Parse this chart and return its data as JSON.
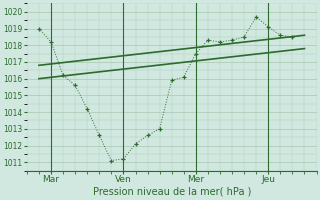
{
  "background_color": "#d0e8e0",
  "grid_color": "#b0ccb8",
  "line_color": "#2d6a2d",
  "xlabel": "Pression niveau de la mer( hPa )",
  "ylim": [
    1010.5,
    1020.5
  ],
  "yticks": [
    1011,
    1012,
    1013,
    1014,
    1015,
    1016,
    1017,
    1018,
    1019,
    1020
  ],
  "day_labels": [
    "Mar",
    "Ven",
    "Mer",
    "Jeu"
  ],
  "day_positions": [
    1,
    4,
    7,
    10
  ],
  "xlim": [
    0,
    12
  ],
  "zigzag_x": [
    0.5,
    1.0,
    1.5,
    2.0,
    2.5,
    3.0,
    3.5,
    4.0,
    4.5,
    5.0,
    5.5,
    6.0,
    6.5,
    7.0,
    7.5,
    8.0,
    8.5,
    9.0,
    9.5,
    10.0,
    10.5,
    11.0
  ],
  "zigzag_y": [
    1019.0,
    1018.2,
    1016.2,
    1015.6,
    1014.2,
    1012.6,
    1011.1,
    1011.2,
    1012.1,
    1012.6,
    1013.0,
    1015.9,
    1016.1,
    1017.5,
    1018.3,
    1018.2,
    1018.3,
    1018.5,
    1019.7,
    1019.1,
    1018.6,
    1018.5
  ],
  "trend1_x": [
    0.5,
    11.5
  ],
  "trend1_y": [
    1016.8,
    1018.6
  ],
  "trend2_x": [
    0.5,
    11.5
  ],
  "trend2_y": [
    1016.0,
    1017.8
  ],
  "vline_positions": [
    1,
    4,
    7,
    10
  ]
}
